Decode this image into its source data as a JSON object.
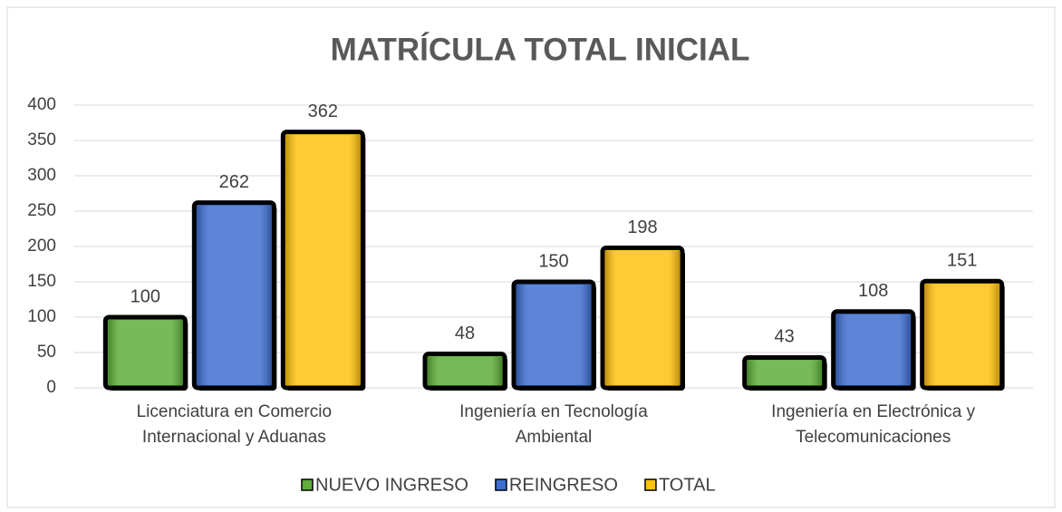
{
  "chart_data": {
    "type": "bar",
    "title": "MATRÍCULA TOTAL INICIAL",
    "categories": [
      "Licenciatura en Comercio Internacional y Aduanas",
      "Ingeniería en Tecnología Ambiental",
      "Ingeniería en Electrónica y Telecomunicaciones"
    ],
    "series": [
      {
        "name": "NUEVO INGRESO",
        "color": "#5fae3a",
        "values": [
          100,
          48,
          43
        ]
      },
      {
        "name": "REINGRESO",
        "color": "#3f6ed0",
        "values": [
          262,
          150,
          108
        ]
      },
      {
        "name": "TOTAL",
        "color": "#ffc20e",
        "values": [
          362,
          198,
          151
        ]
      }
    ],
    "ylim": [
      0,
      400
    ],
    "yticks": [
      0,
      50,
      100,
      150,
      200,
      250,
      300,
      350,
      400
    ],
    "grid": true,
    "legend": "bottom"
  }
}
